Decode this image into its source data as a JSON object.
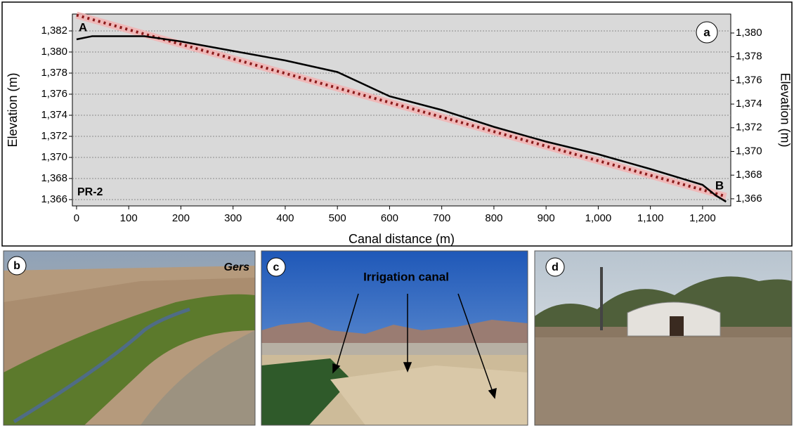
{
  "chart_data": {
    "type": "line",
    "xlabel": "Canal distance (m)",
    "ylabel": "Elevation (m)",
    "y2label": "Elevation (m)",
    "panel_label": "a",
    "start_label": "A",
    "end_label": "B",
    "profile_label": "PR-2",
    "xlim": [
      -8,
      1254
    ],
    "ylim": [
      1365.4,
      1383.6
    ],
    "y2lim": [
      1365.4,
      1381.6
    ],
    "xticks": [
      0,
      100,
      200,
      300,
      400,
      500,
      600,
      700,
      800,
      900,
      {
        "value": 1000,
        "label": "1,000"
      },
      {
        "value": 1100,
        "label": "1,100"
      },
      {
        "value": 1200,
        "label": "1,200"
      }
    ],
    "yticks": [
      {
        "value": 1366,
        "label": "1,366"
      },
      {
        "value": 1368,
        "label": "1,368"
      },
      {
        "value": 1370,
        "label": "1,370"
      },
      {
        "value": 1372,
        "label": "1,372"
      },
      {
        "value": 1374,
        "label": "1,374"
      },
      {
        "value": 1376,
        "label": "1,376"
      },
      {
        "value": 1378,
        "label": "1,378"
      },
      {
        "value": 1380,
        "label": "1,380"
      },
      {
        "value": 1382,
        "label": "1,382"
      }
    ],
    "y2ticks": [
      {
        "value": 1366,
        "label": "1,366"
      },
      {
        "value": 1368,
        "label": "1,368"
      },
      {
        "value": 1370,
        "label": "1,370"
      },
      {
        "value": 1372,
        "label": "1,372"
      },
      {
        "value": 1374,
        "label": "1,374"
      },
      {
        "value": 1376,
        "label": "1,376"
      },
      {
        "value": 1378,
        "label": "1,378"
      },
      {
        "value": 1380,
        "label": "1,380"
      }
    ],
    "grid": true,
    "series": [
      {
        "style": "dotted",
        "color": "#8b1a1a",
        "x": [
          0,
          1245
        ],
        "values": [
          1383.5,
          1366.3
        ]
      },
      {
        "style": "solid",
        "color": "#000000",
        "x": [
          0,
          30,
          130,
          200,
          300,
          400,
          500,
          600,
          700,
          800,
          900,
          1000,
          1100,
          1200,
          1225,
          1245
        ],
        "values": [
          1381.2,
          1381.5,
          1381.5,
          1381.0,
          1380.1,
          1379.2,
          1378.1,
          1375.8,
          1374.5,
          1372.9,
          1371.5,
          1370.3,
          1368.9,
          1367.4,
          1366.4,
          1365.8
        ]
      }
    ]
  },
  "photos": [
    {
      "label": "b",
      "caption": "Gers"
    },
    {
      "label": "c",
      "caption": "Irrigation canal"
    },
    {
      "label": "d"
    }
  ]
}
